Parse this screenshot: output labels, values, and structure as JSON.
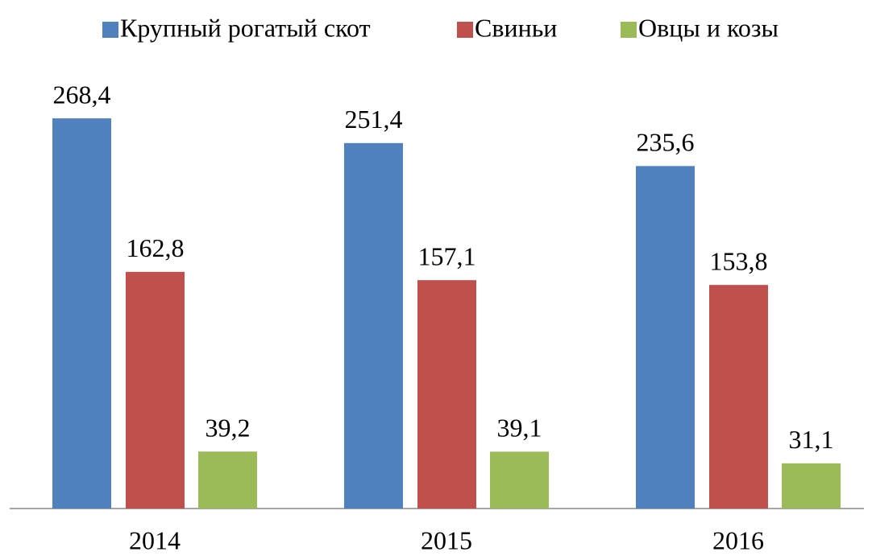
{
  "chart_data": {
    "type": "bar",
    "categories": [
      "2014",
      "2015",
      "2016"
    ],
    "series": [
      {
        "name": "Крупный рогатый скот",
        "color": "#4f81bd",
        "values": [
          268.4,
          251.4,
          235.6
        ],
        "value_labels": [
          "268,4",
          "251,4",
          "235,6"
        ]
      },
      {
        "name": "Свиньи",
        "color": "#c0504d",
        "values": [
          162.8,
          157.1,
          153.8
        ],
        "value_labels": [
          "162,8",
          "157,1",
          "153,8"
        ]
      },
      {
        "name": "Овцы и козы",
        "color": "#9bbb59",
        "values": [
          39.2,
          39.1,
          31.1
        ],
        "value_labels": [
          "39,2",
          "39,1",
          "31,1"
        ]
      }
    ],
    "ylim": [
      0,
      300
    ],
    "legend": "top"
  }
}
